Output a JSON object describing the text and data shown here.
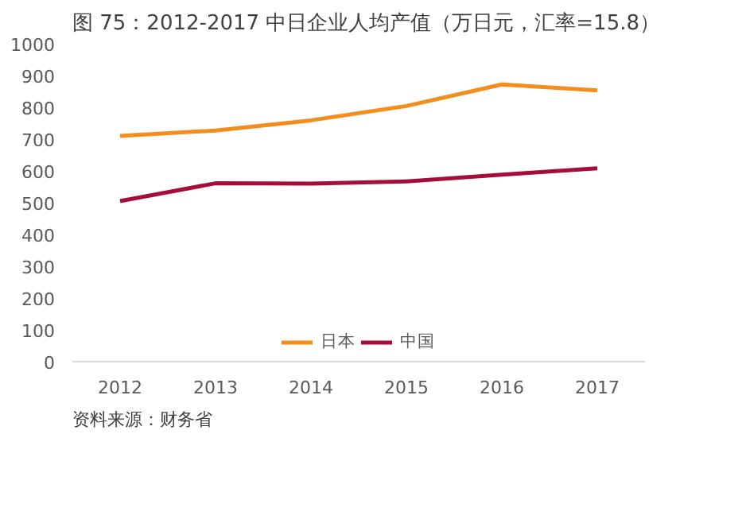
{
  "chart_data": {
    "type": "line",
    "title": "图 75：2012-2017 中日企业人均产值（万日元，汇率=15.8）",
    "categories": [
      "2012",
      "2013",
      "2014",
      "2015",
      "2016",
      "2017"
    ],
    "series": [
      {
        "name": "日本",
        "color": "#f28e1c",
        "values": [
          710,
          727,
          759,
          804,
          872,
          853
        ]
      },
      {
        "name": "中国",
        "color": "#a50d3a",
        "values": [
          505,
          561,
          560,
          567,
          588,
          608
        ]
      }
    ],
    "ylim": [
      0,
      1000
    ],
    "yticks": [
      0,
      100,
      200,
      300,
      400,
      500,
      600,
      700,
      800,
      900,
      1000
    ],
    "grid": false,
    "legend": "bottom",
    "line_style": "solid",
    "marker": "none",
    "annotations": [
      "资料来源：财务省"
    ]
  }
}
